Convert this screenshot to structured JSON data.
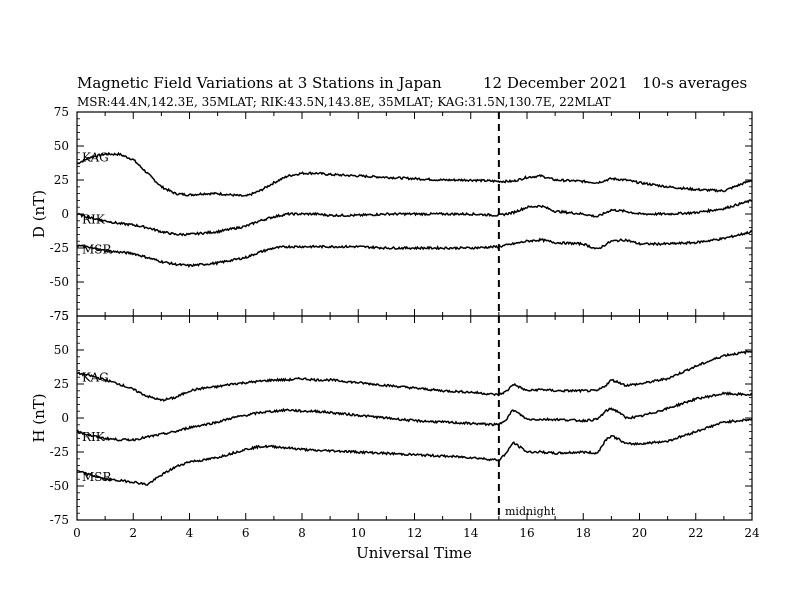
{
  "header": {
    "title": "Magnetic Field Variations at 3 Stations in Japan",
    "date": "12 December 2021",
    "averaging": "10-s averages",
    "stations": "MSR:44.4N,142.3E, 35MLAT;  RIK:43.5N,143.8E, 35MLAT;  KAG:31.5N,130.7E, 22MLAT"
  },
  "chart_data": [
    {
      "type": "line",
      "panel": "D",
      "ylabel": "D (nT)",
      "xlabel": "",
      "xlim": [
        0,
        24
      ],
      "ylim": [
        -75,
        75
      ],
      "yticks": [
        75,
        50,
        25,
        0,
        -25,
        -50,
        -75
      ],
      "midnight_ut": 15,
      "series": [
        {
          "name": "KAG",
          "x": [
            0,
            0.5,
            1,
            1.5,
            2,
            2.5,
            3,
            3.5,
            4,
            4.5,
            5,
            5.5,
            6,
            6.5,
            7,
            7.5,
            8,
            8.5,
            9,
            10,
            11,
            12,
            13,
            14,
            15,
            15.5,
            16,
            16.5,
            17,
            18,
            18.5,
            19,
            19.5,
            20,
            21,
            22,
            23,
            24
          ],
          "y": [
            37,
            42,
            44,
            44,
            40,
            30,
            20,
            15,
            14,
            15,
            15,
            14,
            13,
            17,
            23,
            28,
            30,
            30,
            29,
            28,
            27,
            26,
            25,
            25,
            24,
            24,
            27,
            28,
            25,
            24,
            23,
            26,
            25,
            23,
            20,
            18,
            17,
            25
          ]
        },
        {
          "name": "RIK",
          "x": [
            0,
            0.5,
            1,
            1.5,
            2,
            2.5,
            3,
            3.5,
            4,
            4.5,
            5,
            5.5,
            6,
            6.5,
            7,
            7.5,
            8,
            8.5,
            9,
            10,
            11,
            12,
            13,
            14,
            15,
            15.5,
            16,
            16.5,
            17,
            18,
            18.5,
            19,
            19.5,
            20,
            21,
            22,
            23,
            24
          ],
          "y": [
            0,
            -3,
            -5,
            -7,
            -8,
            -10,
            -13,
            -15,
            -15,
            -14,
            -13,
            -11,
            -9,
            -5,
            -2,
            0,
            0,
            0,
            -1,
            -1,
            0,
            0,
            0,
            0,
            -1,
            1,
            5,
            6,
            2,
            0,
            -2,
            3,
            2,
            0,
            0,
            1,
            4,
            10
          ]
        },
        {
          "name": "MSR",
          "x": [
            0,
            0.5,
            1,
            1.5,
            2,
            2.5,
            3,
            3.5,
            4,
            4.5,
            5,
            5.5,
            6,
            6.5,
            7,
            7.5,
            8,
            8.5,
            9,
            10,
            11,
            12,
            13,
            14,
            15,
            15.5,
            16,
            16.5,
            17,
            18,
            18.5,
            19,
            19.5,
            20,
            21,
            22,
            23,
            24
          ],
          "y": [
            -23,
            -25,
            -27,
            -28,
            -29,
            -32,
            -35,
            -37,
            -38,
            -37,
            -36,
            -34,
            -32,
            -28,
            -25,
            -24,
            -24,
            -24,
            -24,
            -24,
            -25,
            -25,
            -25,
            -25,
            -24,
            -22,
            -20,
            -19,
            -21,
            -22,
            -26,
            -20,
            -19,
            -22,
            -22,
            -21,
            -18,
            -13
          ]
        }
      ]
    },
    {
      "type": "line",
      "panel": "H",
      "ylabel": "H (nT)",
      "xlabel": "Universal Time",
      "xlim": [
        0,
        24
      ],
      "ylim": [
        -75,
        75
      ],
      "xticks": [
        0,
        2,
        4,
        6,
        8,
        10,
        12,
        14,
        16,
        18,
        20,
        22,
        24
      ],
      "yticks": [
        75,
        50,
        25,
        0,
        -25,
        -50,
        -75
      ],
      "midnight_ut": 15,
      "series": [
        {
          "name": "KAG",
          "x": [
            0,
            0.5,
            1,
            1.5,
            2,
            2.5,
            3,
            3.5,
            4,
            4.5,
            5,
            5.5,
            6,
            6.5,
            7,
            7.5,
            8,
            8.5,
            9,
            10,
            11,
            12,
            13,
            14,
            15,
            15.3,
            15.5,
            15.8,
            16,
            16.5,
            17,
            18,
            18.5,
            18.8,
            19,
            19.3,
            19.5,
            20,
            21,
            22,
            23,
            24
          ],
          "y": [
            33,
            31,
            28,
            25,
            21,
            16,
            13,
            15,
            20,
            22,
            23,
            25,
            26,
            27,
            28,
            28,
            29,
            28,
            28,
            26,
            24,
            22,
            20,
            19,
            17,
            20,
            25,
            22,
            20,
            21,
            20,
            20,
            20,
            24,
            28,
            26,
            24,
            25,
            29,
            38,
            46,
            49
          ]
        },
        {
          "name": "RIK",
          "x": [
            0,
            0.5,
            1,
            1.5,
            2,
            2.5,
            3,
            3.5,
            4,
            4.5,
            5,
            5.5,
            6,
            6.5,
            7,
            7.5,
            8,
            8.5,
            9,
            10,
            11,
            12,
            13,
            14,
            15,
            15.3,
            15.5,
            15.8,
            16,
            16.5,
            17,
            18,
            18.5,
            18.8,
            19,
            19.3,
            19.5,
            20,
            21,
            22,
            23,
            24
          ],
          "y": [
            -10,
            -13,
            -15,
            -16,
            -16,
            -14,
            -12,
            -10,
            -7,
            -5,
            -3,
            0,
            2,
            4,
            5,
            6,
            5,
            5,
            4,
            2,
            0,
            -2,
            -3,
            -4,
            -5,
            0,
            6,
            2,
            -1,
            -1,
            -1,
            -2,
            -1,
            5,
            7,
            4,
            0,
            1,
            7,
            14,
            18,
            17
          ]
        },
        {
          "name": "MSR",
          "x": [
            0,
            0.5,
            1,
            1.5,
            2,
            2.5,
            3,
            3.5,
            4,
            4.5,
            5,
            5.5,
            6,
            6.5,
            7,
            7.5,
            8,
            8.5,
            9,
            10,
            11,
            12,
            13,
            14,
            15,
            15.3,
            15.5,
            15.8,
            16,
            16.5,
            17,
            18,
            18.5,
            18.8,
            19,
            19.3,
            19.5,
            20,
            21,
            22,
            23,
            24
          ],
          "y": [
            -39,
            -42,
            -45,
            -46,
            -47,
            -49,
            -42,
            -36,
            -32,
            -31,
            -29,
            -26,
            -23,
            -21,
            -21,
            -22,
            -23,
            -24,
            -24,
            -25,
            -26,
            -27,
            -28,
            -29,
            -31,
            -25,
            -18,
            -22,
            -25,
            -25,
            -26,
            -25,
            -26,
            -16,
            -13,
            -16,
            -19,
            -19,
            -17,
            -10,
            -3,
            -1
          ]
        }
      ]
    }
  ],
  "annotations": {
    "midnight_label": "midnight"
  }
}
